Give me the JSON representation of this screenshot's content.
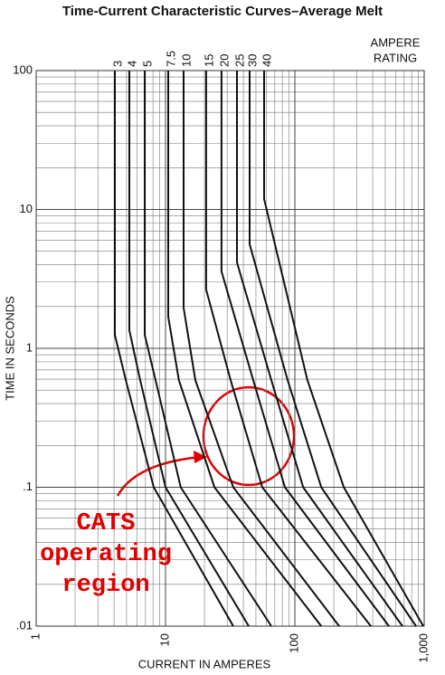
{
  "chart_data": {
    "type": "line",
    "title": "Time-Current Characteristic Curves–Average Melt",
    "x_label": "CURRENT IN AMPERES",
    "y_label": "TIME IN SECONDS",
    "legend_title": [
      "AMPERE",
      "RATING"
    ],
    "annotation": [
      "CATS",
      "operating",
      "region"
    ],
    "annotation_color": "#e00000",
    "log_x": true,
    "log_y": true,
    "grid": true,
    "xlim": [
      1,
      1000
    ],
    "ylim": [
      0.01,
      100
    ],
    "xticks": [
      1,
      10,
      100,
      {
        "value": 1000,
        "label": "1,000"
      }
    ],
    "yticks": [
      {
        "value": 0.01,
        "label": ".01"
      },
      {
        "value": 0.1,
        "label": ".1"
      },
      1,
      10,
      100
    ],
    "series": [
      {
        "name": "3",
        "color": "#111111",
        "x": [
          4.06,
          4.06,
          4.93,
          8.11,
          33.4
        ],
        "values": [
          100,
          1.25,
          0.59,
          0.1,
          0.01
        ]
      },
      {
        "name": "4",
        "color": "#111111",
        "x": [
          5.25,
          5.25,
          6.37,
          10,
          44
        ],
        "values": [
          100,
          1.35,
          0.59,
          0.1,
          0.01
        ]
      },
      {
        "name": "5",
        "color": "#111111",
        "x": [
          6.91,
          6.91,
          8.38,
          13.1,
          65.8
        ],
        "values": [
          100,
          1.25,
          0.59,
          0.1,
          0.01
        ]
      },
      {
        "name": "7.5",
        "color": "#111111",
        "x": [
          10.5,
          10.5,
          12.7,
          23.9,
          160
        ],
        "values": [
          100,
          1.69,
          0.59,
          0.1,
          0.01
        ]
      },
      {
        "name": "10",
        "color": "#111111",
        "x": [
          13.8,
          13.8,
          17,
          33.4,
          220
        ],
        "values": [
          100,
          1.96,
          0.59,
          0.1,
          0.01
        ]
      },
      {
        "name": "15",
        "color": "#111111",
        "x": [
          20.6,
          20.6,
          31.9,
          56,
          387
        ],
        "values": [
          100,
          2.65,
          0.59,
          0.1,
          0.01
        ]
      },
      {
        "name": "20",
        "color": "#111111",
        "x": [
          27.1,
          27.1,
          47.7,
          83.8,
          534
        ],
        "values": [
          100,
          3.58,
          0.59,
          0.1,
          0.01
        ]
      },
      {
        "name": "25",
        "color": "#111111",
        "x": [
          35.7,
          35.7,
          65.8,
          116,
          680
        ],
        "values": [
          100,
          4.16,
          0.59,
          0.1,
          0.01
        ]
      },
      {
        "name": "30",
        "color": "#111111",
        "x": [
          44.7,
          44.7,
          87.9,
          160,
          865
        ],
        "values": [
          100,
          5.62,
          0.59,
          0.1,
          0.01
        ]
      },
      {
        "name": "40",
        "color": "#111111",
        "x": [
          57.8,
          57.8,
          125,
          239,
          984
        ],
        "values": [
          100,
          11.9,
          0.59,
          0.1,
          0.01
        ]
      }
    ]
  }
}
